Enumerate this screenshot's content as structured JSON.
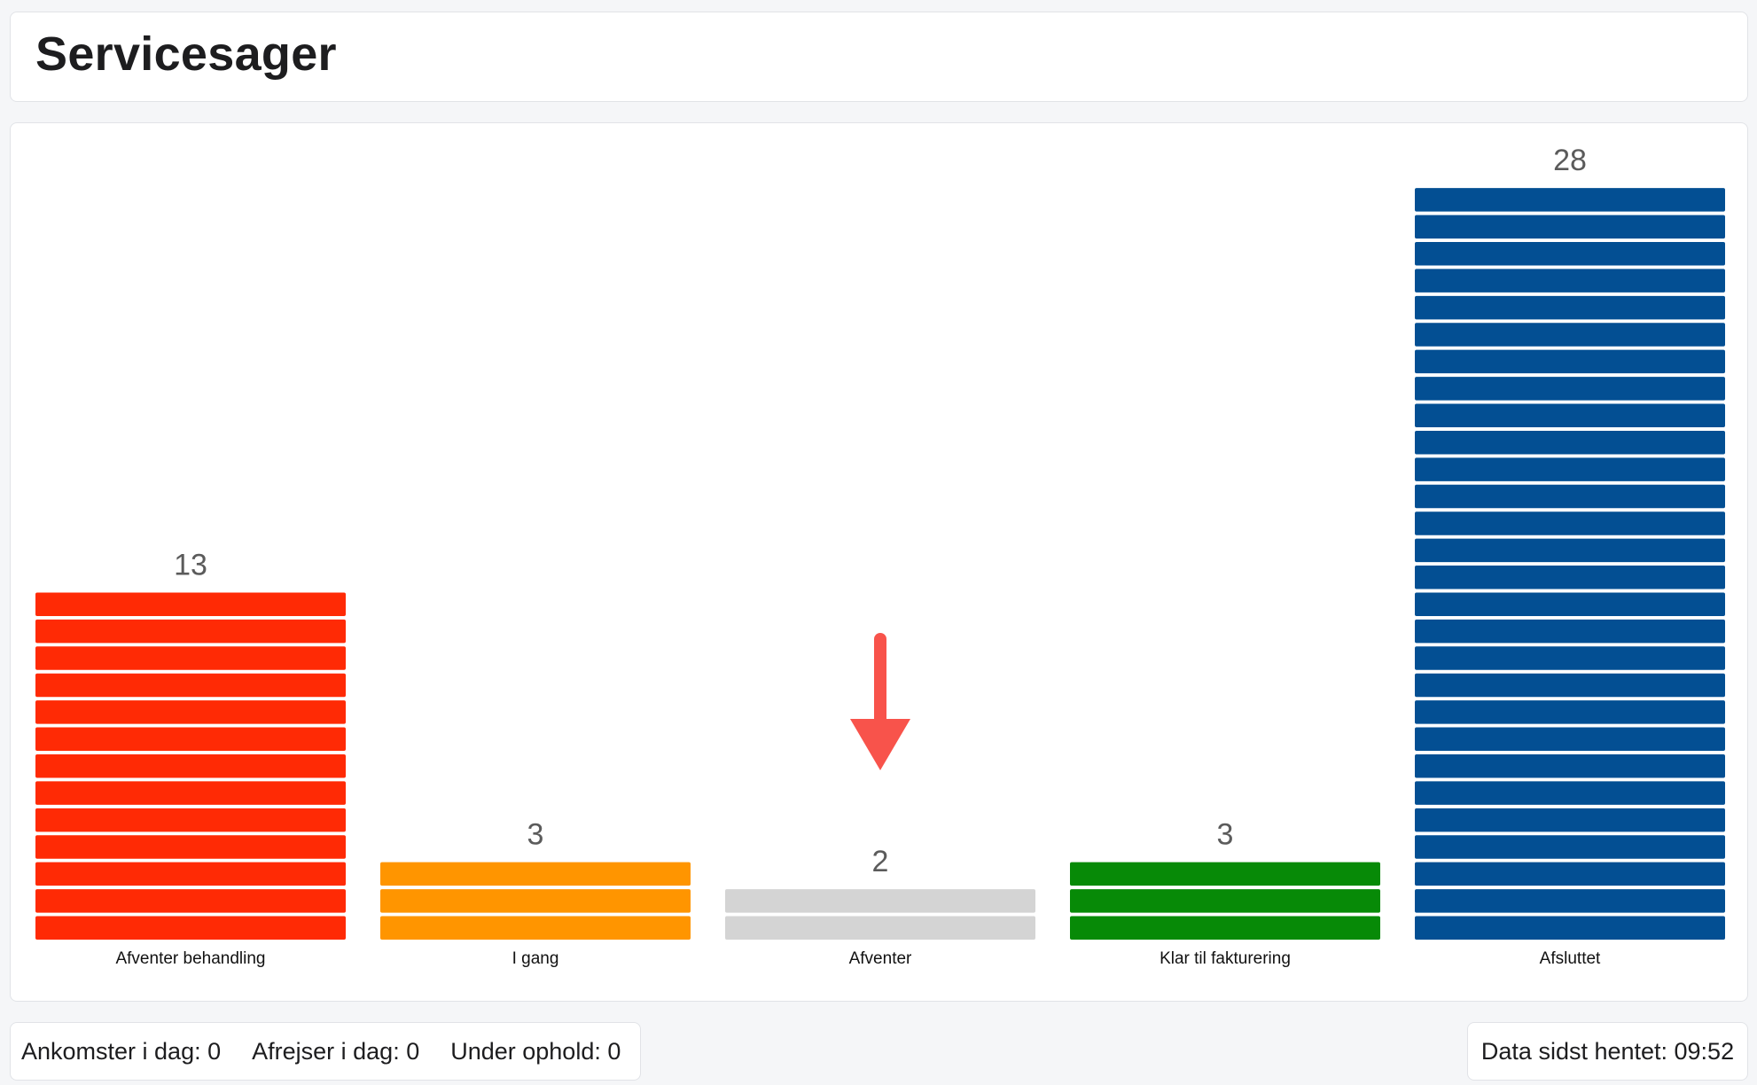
{
  "header": {
    "title": "Servicesager"
  },
  "chart_data": {
    "type": "bar",
    "style": "stacked-segments",
    "categories": [
      "Afventer behandling",
      "I gang",
      "Afventer",
      "Klar til fakturering",
      "Afsluttet"
    ],
    "values": [
      13,
      3,
      2,
      3,
      28
    ],
    "colors": [
      "#ff2a05",
      "#ff9500",
      "#d4d4d4",
      "#078a07",
      "#034f93"
    ],
    "value_labels": [
      "13",
      "3",
      "2",
      "3",
      "28"
    ],
    "ylim": [
      0,
      28
    ],
    "grid": false,
    "legend": "none",
    "annotation": {
      "type": "arrow-down",
      "category": "Afventer",
      "color": "#f8534b"
    }
  },
  "footer": {
    "arrivals": "Ankomster i dag: 0",
    "departures": "Afrejser i dag: 0",
    "staying": "Under ophold: 0",
    "last_fetched": "Data sidst hentet: 09:52"
  }
}
